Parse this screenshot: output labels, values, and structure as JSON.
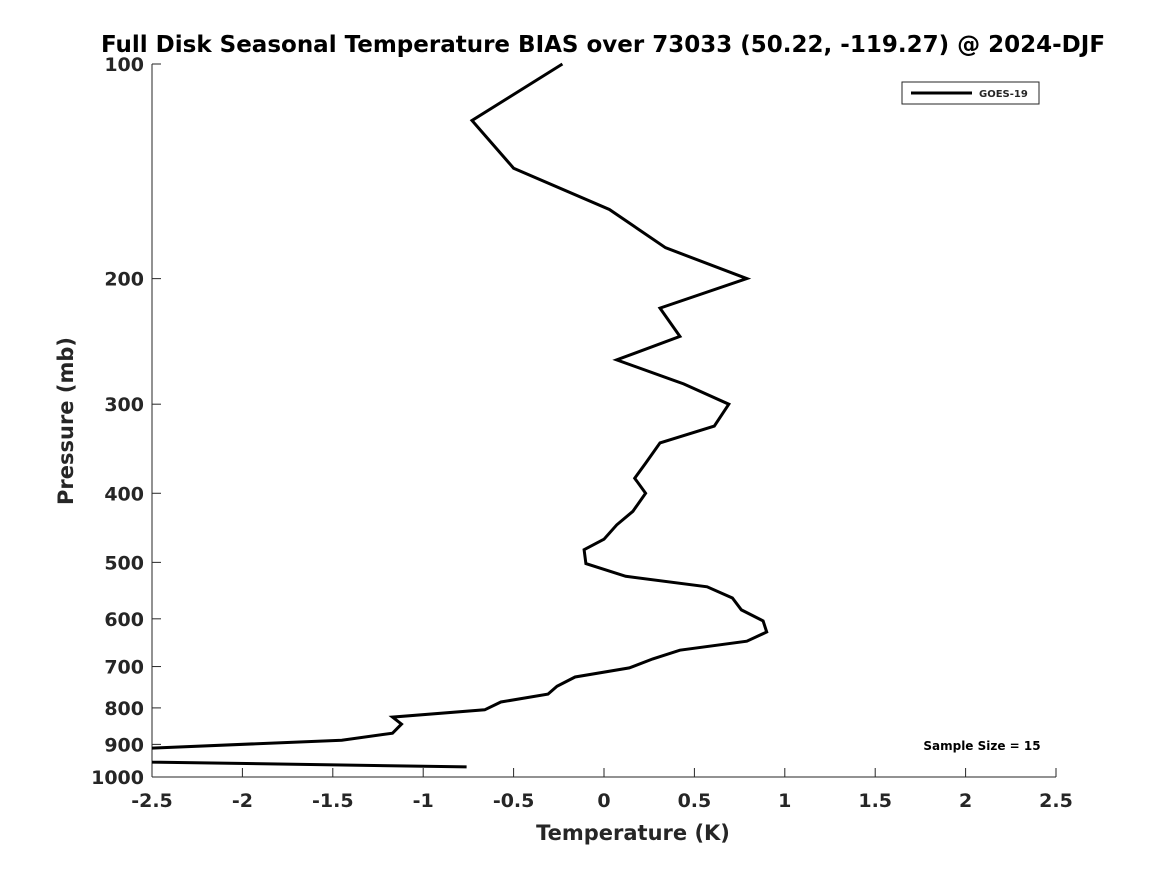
{
  "chart_data": {
    "type": "line",
    "title": "Full Disk Seasonal Temperature BIAS over 73033 (50.22, -119.27) @ 2024-DJF",
    "xlabel": "Temperature (K)",
    "ylabel": "Pressure (mb)",
    "xlim": [
      -2.5,
      2.5
    ],
    "ylim": [
      100,
      1000
    ],
    "yscale": "log",
    "yreversed": true,
    "xticks": [
      -2.5,
      -2,
      -1.5,
      -1,
      -0.5,
      0,
      0.5,
      1,
      1.5,
      2,
      2.5
    ],
    "xtick_labels": [
      "-2.5",
      "-2",
      "-1.5",
      "-1",
      "-0.5",
      "0",
      "0.5",
      "1",
      "1.5",
      "2",
      "2.5"
    ],
    "yticks": [
      100,
      200,
      300,
      400,
      500,
      600,
      700,
      800,
      900,
      1000
    ],
    "ytick_labels": [
      "100",
      "200",
      "300",
      "400",
      "500",
      "600",
      "700",
      "800",
      "900",
      "1000"
    ],
    "grid": false,
    "legend": {
      "placement": "top-right",
      "entries": [
        "GOES-19"
      ]
    },
    "annotation": "Sample Size = 15",
    "series": [
      {
        "name": "GOES-19",
        "color": "#000000",
        "x": [
          -0.23,
          -0.73,
          -0.5,
          0.03,
          0.34,
          0.79,
          0.31,
          0.42,
          0.07,
          0.44,
          0.69,
          0.61,
          0.31,
          0.23,
          0.17,
          0.23,
          0.16,
          0.07,
          0.0,
          -0.11,
          -0.1,
          0.12,
          0.57,
          0.71,
          0.76,
          0.88,
          0.9,
          0.79,
          0.42,
          0.27,
          0.14,
          -0.16,
          -0.26,
          -0.31,
          -0.57,
          -0.66,
          -1.17,
          -1.12,
          -1.17,
          -1.45,
          -2.5,
          -3.3,
          -2.5,
          -0.76
        ],
        "y": [
          100,
          120,
          140,
          160,
          181,
          200,
          220,
          241,
          260,
          281,
          300,
          322,
          340,
          363,
          381,
          400,
          424,
          443,
          464,
          480,
          502,
          523,
          541,
          561,
          583,
          604,
          626,
          645,
          664,
          683,
          703,
          724,
          746,
          765,
          785,
          805,
          824,
          843,
          868,
          888,
          911,
          930,
          953,
          968
        ]
      }
    ]
  }
}
